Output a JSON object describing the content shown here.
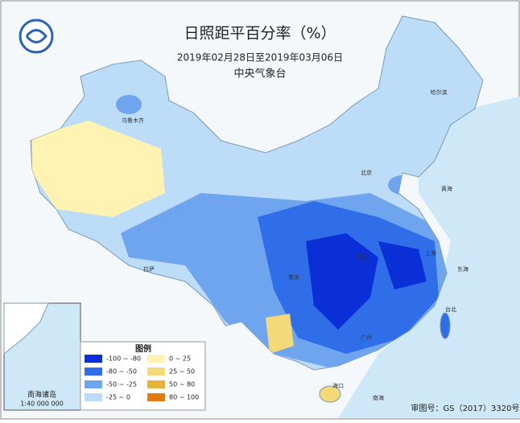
{
  "header": {
    "title": "日照距平百分率（%）",
    "subtitle": "2019年02月28日至2019年03月06日",
    "agency": "中央气象台"
  },
  "legend": {
    "title": "图例",
    "items": [
      {
        "label": "-100 ~ -80",
        "color": "#0a2fd6"
      },
      {
        "label": "-80 ~ -50",
        "color": "#2f6ee8"
      },
      {
        "label": "-50 ~ -25",
        "color": "#6fa4ee"
      },
      {
        "label": "-25 ~ 0",
        "color": "#bcdcf7"
      },
      {
        "label": "0 ~ 25",
        "color": "#fff3b3"
      },
      {
        "label": "25 ~ 50",
        "color": "#f3d977"
      },
      {
        "label": "50 ~ 80",
        "color": "#e8b13a"
      },
      {
        "label": "80 ~ 100",
        "color": "#e07b12"
      }
    ]
  },
  "places": [
    {
      "name": "乌鲁木齐"
    },
    {
      "name": "拉萨"
    },
    {
      "name": "北京"
    },
    {
      "name": "上海"
    },
    {
      "name": "广州"
    },
    {
      "name": "重庆"
    },
    {
      "name": "武汉"
    },
    {
      "name": "哈尔滨"
    },
    {
      "name": "台北"
    },
    {
      "name": "海口"
    },
    {
      "name": "东海"
    },
    {
      "name": "黄海"
    },
    {
      "name": "南海"
    }
  ],
  "inset": {
    "label": "南海诸岛",
    "scale": "1:40 000 000"
  },
  "footer": {
    "review": "审图号：GS（2017）3320号"
  }
}
